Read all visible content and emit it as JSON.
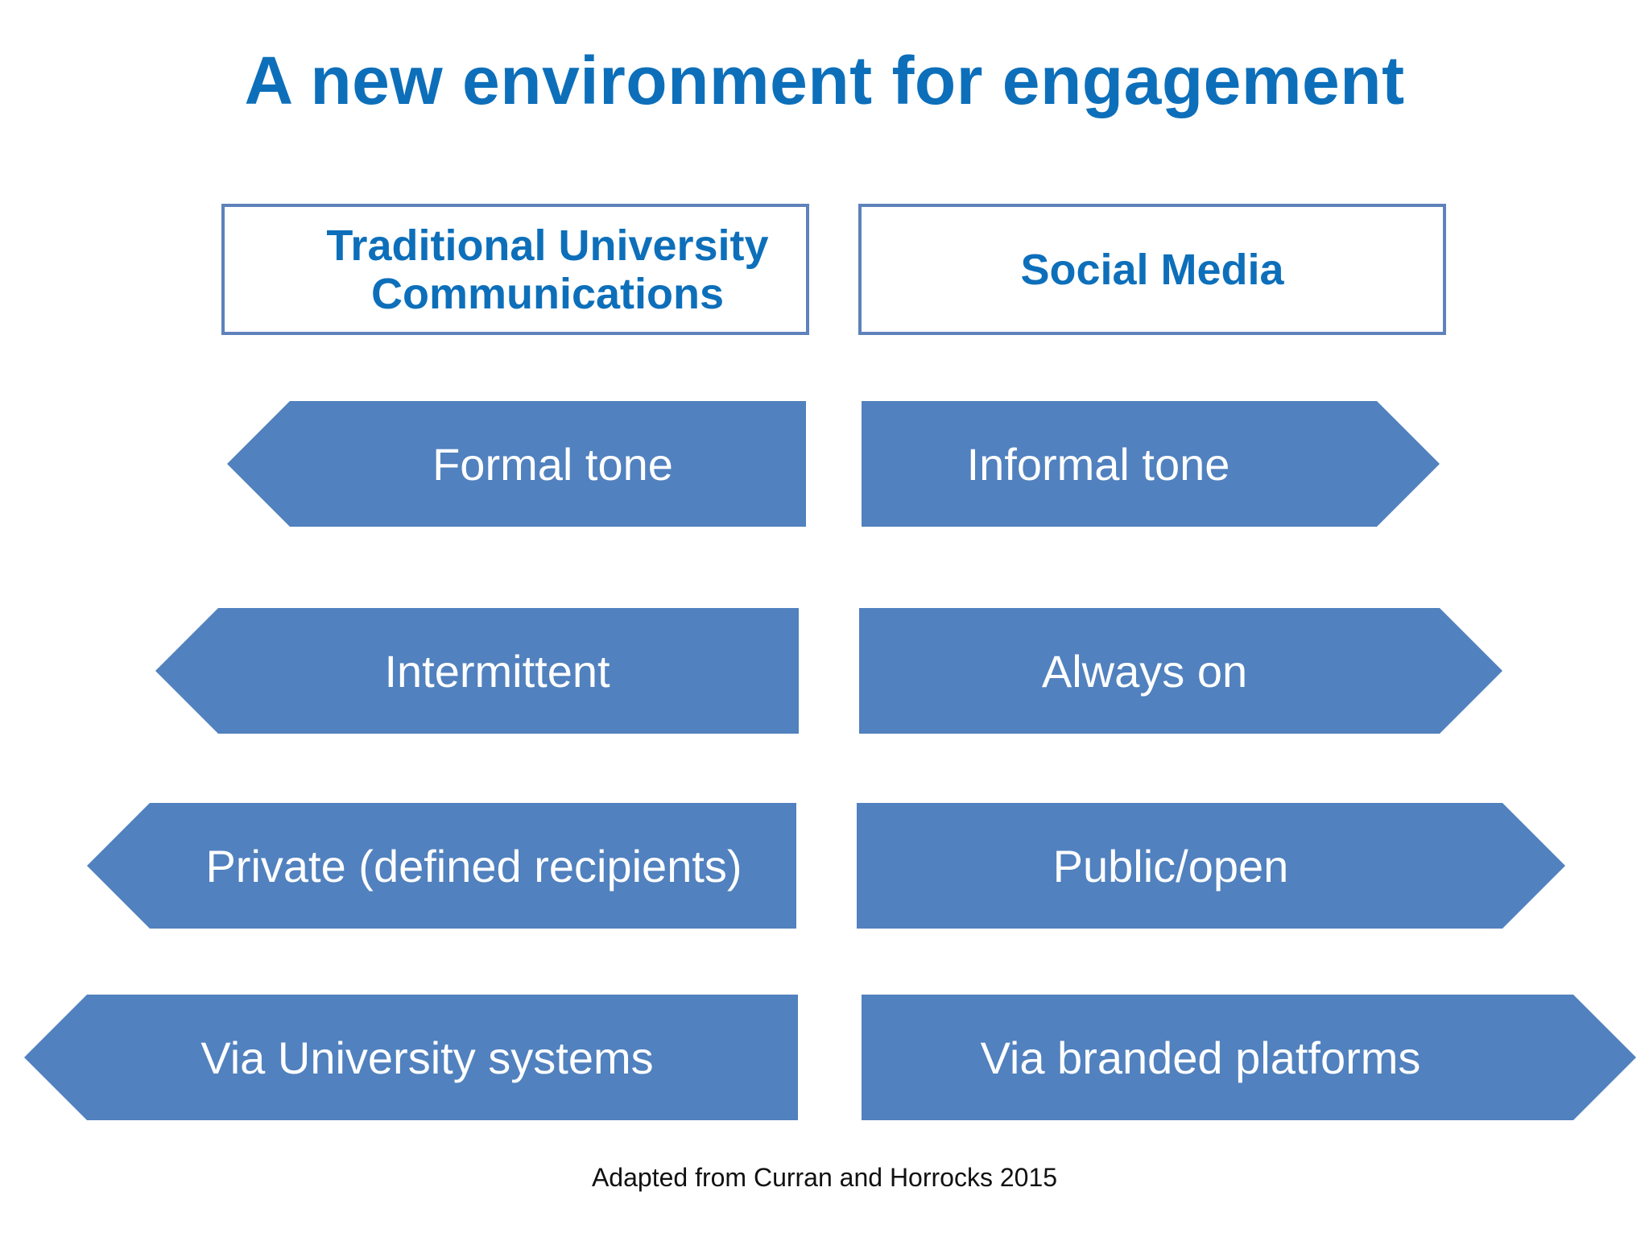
{
  "title": "A new environment for engagement",
  "headers": {
    "left": "Traditional University Communications",
    "right": "Social Media"
  },
  "rows": [
    {
      "left": "Formal tone",
      "right": "Informal tone"
    },
    {
      "left": "Intermittent",
      "right": "Always on"
    },
    {
      "left": "Private (defined recipients)",
      "right": "Public/open"
    },
    {
      "left": "Via University systems",
      "right": "Via branded platforms"
    }
  ],
  "caption": "Adapted from Curran and Horrocks 2015",
  "colors": {
    "title": "#0d6fba",
    "arrow_fill": "#5181be",
    "box_border": "#5e82bb",
    "arrow_text": "#ffffff"
  }
}
